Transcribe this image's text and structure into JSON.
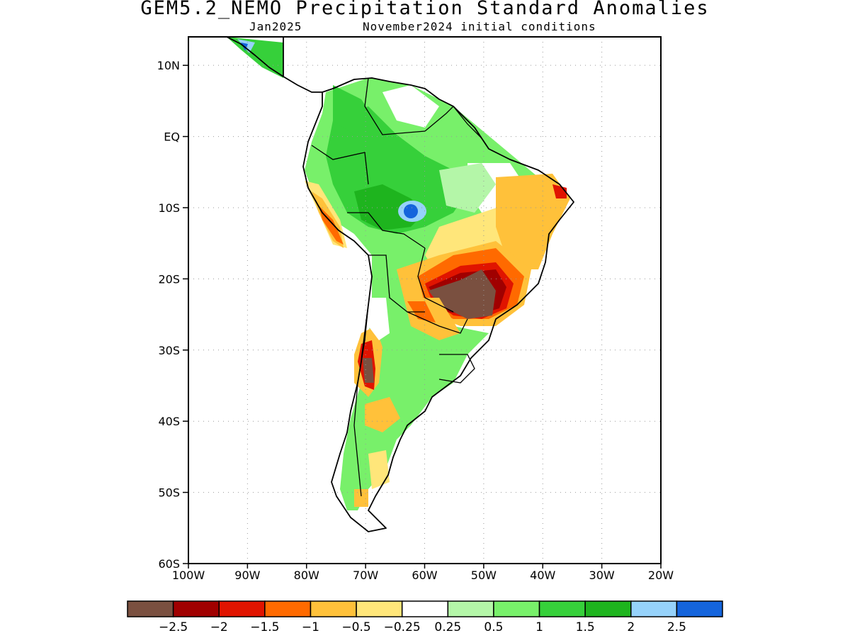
{
  "header": {
    "title": "GEM5.2_NEMO Precipitation Standard Anomalies",
    "target_month": "Jan2025",
    "init": "November2024 initial conditions"
  },
  "axes": {
    "lat_ticks": [
      "10N",
      "EQ",
      "10S",
      "20S",
      "30S",
      "40S",
      "50S",
      "60S"
    ],
    "lon_ticks": [
      "100W",
      "90W",
      "80W",
      "70W",
      "60W",
      "50W",
      "40W",
      "30W",
      "20W"
    ]
  },
  "colorbar": {
    "colors": [
      "#7a5040",
      "#a00000",
      "#e01400",
      "#ff6a00",
      "#ffc13a",
      "#ffe67a",
      "#ffffff",
      "#b4f6a8",
      "#78f06a",
      "#36d03a",
      "#1eb41e",
      "#96d2fa",
      "#1464dc"
    ],
    "labels": [
      "−2.5",
      "−2",
      "−1.5",
      "−1",
      "−0.5",
      "−0.25",
      "0.25",
      "0.5",
      "1",
      "1.5",
      "2",
      "2.5"
    ]
  },
  "chart_data": {
    "type": "heatmap",
    "title": "GEM5.2_NEMO Precipitation Standard Anomalies",
    "subtitle": "Jan2025    November2024 initial conditions",
    "xlim": [
      -100,
      -20
    ],
    "ylim": [
      -60,
      14
    ],
    "grid": true,
    "levels": [
      -2.5,
      -2,
      -1.5,
      -1,
      -0.5,
      -0.25,
      0.25,
      0.5,
      1,
      1.5,
      2,
      2.5
    ]
  }
}
